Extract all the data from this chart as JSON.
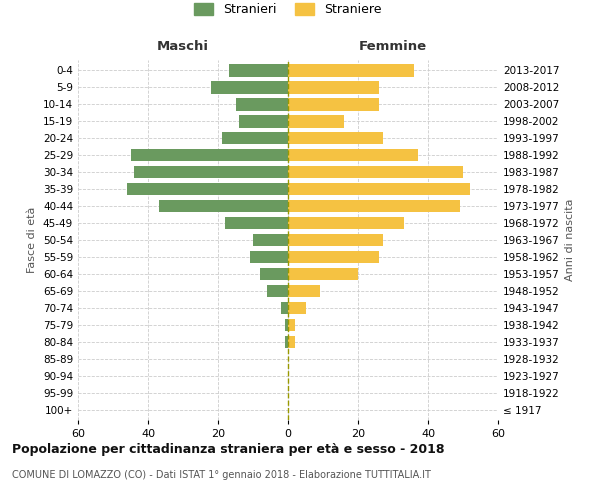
{
  "age_groups": [
    "100+",
    "95-99",
    "90-94",
    "85-89",
    "80-84",
    "75-79",
    "70-74",
    "65-69",
    "60-64",
    "55-59",
    "50-54",
    "45-49",
    "40-44",
    "35-39",
    "30-34",
    "25-29",
    "20-24",
    "15-19",
    "10-14",
    "5-9",
    "0-4"
  ],
  "birth_years": [
    "≤ 1917",
    "1918-1922",
    "1923-1927",
    "1928-1932",
    "1933-1937",
    "1938-1942",
    "1943-1947",
    "1948-1952",
    "1953-1957",
    "1958-1962",
    "1963-1967",
    "1968-1972",
    "1973-1977",
    "1978-1982",
    "1983-1987",
    "1988-1992",
    "1993-1997",
    "1998-2002",
    "2003-2007",
    "2008-2012",
    "2013-2017"
  ],
  "males": [
    0,
    0,
    0,
    0,
    1,
    1,
    2,
    6,
    8,
    11,
    10,
    18,
    37,
    46,
    44,
    45,
    19,
    14,
    15,
    22,
    17
  ],
  "females": [
    0,
    0,
    0,
    0,
    2,
    2,
    5,
    9,
    20,
    26,
    27,
    33,
    49,
    52,
    50,
    37,
    27,
    16,
    26,
    26,
    36
  ],
  "male_color": "#6a9a5f",
  "female_color": "#f5c242",
  "grid_color": "#cccccc",
  "title": "Popolazione per cittadinanza straniera per età e sesso - 2018",
  "subtitle": "COMUNE DI LOMAZZO (CO) - Dati ISTAT 1° gennaio 2018 - Elaborazione TUTTITALIA.IT",
  "left_label": "Maschi",
  "right_label": "Femmine",
  "left_axis_label": "Fasce di età",
  "right_axis_label": "Anni di nascita",
  "legend_male": "Stranieri",
  "legend_female": "Straniere",
  "xlim": 60
}
